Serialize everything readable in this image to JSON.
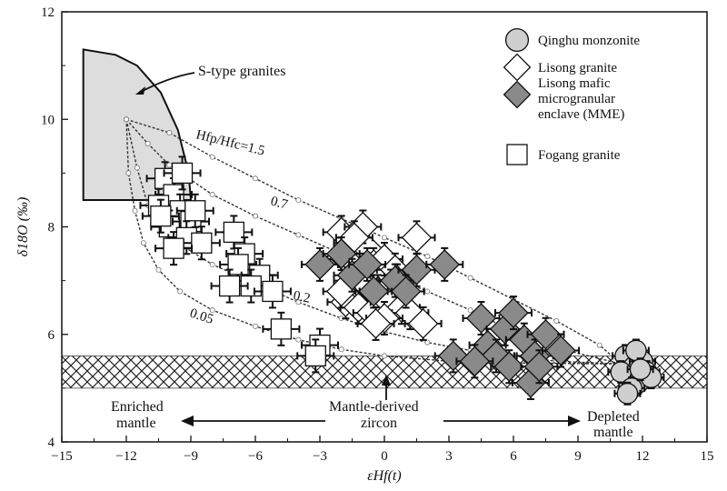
{
  "chart_data": {
    "type": "scatter",
    "xlabel": "εHf(t)",
    "ylabel": "δ18O (‰)",
    "xlim": [
      -15,
      15
    ],
    "ylim": [
      4,
      12
    ],
    "x_ticks": [
      "−15",
      "−12",
      "−9",
      "−6",
      "−3",
      "0",
      "3",
      "6",
      "9",
      "12",
      "15"
    ],
    "y_ticks": [
      "4",
      "6",
      "8",
      "10",
      "12"
    ],
    "grid": false,
    "legend_position": "top-right",
    "legend": [
      {
        "label": "Qinghu monzonite",
        "marker": "circle",
        "fill": "#cfcfcf"
      },
      {
        "label": "Lisong granite",
        "marker": "diamond",
        "fill": "#ffffff"
      },
      {
        "label": "Lisong mafic microgranular enclave (MME)",
        "lines": [
          "Lisong mafic",
          "microgranular",
          "enclave (MME)"
        ],
        "marker": "diamond",
        "fill": "#8a8a8a"
      },
      {
        "label": "Fogang granite",
        "marker": "square",
        "fill": "#ffffff"
      }
    ],
    "annotations": {
      "s_type": "S-type granites",
      "enriched_1": "Enriched",
      "enriched_2": "mantle",
      "mantle_zircon_1": "Mantle-derived",
      "mantle_zircon_2": "zircon",
      "depleted_1": "Depleted",
      "depleted_2": "mantle",
      "curve_15": "Hfp/Hfc=1.5",
      "curve_07": "0.7",
      "curve_02": "0.2",
      "curve_005": "0.05"
    },
    "s_type_field": [
      [
        -14,
        8.5
      ],
      [
        -9,
        8.5
      ],
      [
        -9.1,
        9
      ],
      [
        -9.6,
        9.8
      ],
      [
        -10.4,
        10.5
      ],
      [
        -11.5,
        11.0
      ],
      [
        -12.5,
        11.2
      ],
      [
        -14,
        11.3
      ]
    ],
    "mantle_band": [
      5.0,
      5.6
    ],
    "mixing_curves": [
      {
        "name": "1.5",
        "points": [
          [
            -12,
            10
          ],
          [
            -10,
            9.75
          ],
          [
            -8,
            9.3
          ],
          [
            -6,
            8.9
          ],
          [
            -4,
            8.5
          ],
          [
            -2,
            8.15
          ],
          [
            0,
            7.8
          ],
          [
            2,
            7.45
          ],
          [
            4,
            7.05
          ],
          [
            6,
            6.65
          ],
          [
            8,
            6.25
          ],
          [
            10,
            5.8
          ],
          [
            11,
            5.45
          ]
        ]
      },
      {
        "name": "0.7",
        "points": [
          [
            -12,
            10
          ],
          [
            -11,
            9.55
          ],
          [
            -10,
            9.15
          ],
          [
            -8,
            8.6
          ],
          [
            -6,
            8.2
          ],
          [
            -4,
            7.85
          ],
          [
            -2,
            7.5
          ],
          [
            0,
            7.15
          ],
          [
            2,
            6.8
          ],
          [
            4,
            6.45
          ],
          [
            6,
            6.05
          ],
          [
            8,
            5.75
          ],
          [
            11,
            5.45
          ]
        ]
      },
      {
        "name": "0.2",
        "points": [
          [
            -12,
            10
          ],
          [
            -11.5,
            9.1
          ],
          [
            -11,
            8.4
          ],
          [
            -10,
            7.8
          ],
          [
            -8,
            7.3
          ],
          [
            -6,
            6.95
          ],
          [
            -4,
            6.6
          ],
          [
            -2,
            6.3
          ],
          [
            0,
            6.05
          ],
          [
            2,
            5.85
          ],
          [
            4,
            5.7
          ],
          [
            6,
            5.6
          ],
          [
            8,
            5.5
          ],
          [
            11,
            5.45
          ]
        ]
      },
      {
        "name": "0.05",
        "points": [
          [
            -12,
            10
          ],
          [
            -11.9,
            9.0
          ],
          [
            -11.6,
            8.3
          ],
          [
            -11.2,
            7.7
          ],
          [
            -10.5,
            7.2
          ],
          [
            -9.5,
            6.8
          ],
          [
            -8,
            6.45
          ],
          [
            -6,
            6.15
          ],
          [
            -4,
            5.9
          ],
          [
            -2,
            5.72
          ],
          [
            0,
            5.6
          ],
          [
            3,
            5.5
          ],
          [
            6,
            5.47
          ],
          [
            11,
            5.45
          ]
        ]
      }
    ],
    "series": [
      {
        "name": "Fogang granite",
        "marker": "square",
        "fill": "#ffffff",
        "points": [
          [
            -10.2,
            8.9
          ],
          [
            -9.8,
            8.6
          ],
          [
            -10.5,
            8.4
          ],
          [
            -9.5,
            8.3
          ],
          [
            -10.0,
            8.0
          ],
          [
            -9.0,
            8.1
          ],
          [
            -9.2,
            7.8
          ],
          [
            -8.5,
            7.7
          ],
          [
            -9.8,
            7.6
          ],
          [
            -8.8,
            8.3
          ],
          [
            -10.4,
            8.2
          ],
          [
            -9.4,
            9.0
          ],
          [
            -7.0,
            7.9
          ],
          [
            -6.5,
            7.5
          ],
          [
            -6.8,
            7.3
          ],
          [
            -5.8,
            7.1
          ],
          [
            -6.2,
            6.9
          ],
          [
            -7.2,
            6.9
          ],
          [
            -5.2,
            6.8
          ],
          [
            -4.8,
            6.1
          ],
          [
            -3.0,
            5.8
          ],
          [
            -3.2,
            5.6
          ]
        ]
      },
      {
        "name": "Lisong granite",
        "marker": "diamond",
        "fill": "#ffffff",
        "points": [
          [
            -2.0,
            7.9
          ],
          [
            -1.5,
            7.7
          ],
          [
            -1.2,
            7.5
          ],
          [
            -0.8,
            7.6
          ],
          [
            -1.8,
            7.4
          ],
          [
            -0.5,
            7.3
          ],
          [
            -1.0,
            7.2
          ],
          [
            -0.2,
            7.1
          ],
          [
            0.0,
            7.4
          ],
          [
            0.5,
            7.2
          ],
          [
            -1.5,
            7.0
          ],
          [
            -0.8,
            6.9
          ],
          [
            -0.3,
            6.8
          ],
          [
            0.3,
            6.9
          ],
          [
            -1.8,
            6.6
          ],
          [
            -1.2,
            6.5
          ],
          [
            -0.6,
            6.4
          ],
          [
            0.2,
            6.6
          ],
          [
            0.8,
            6.5
          ],
          [
            1.2,
            6.4
          ],
          [
            0.0,
            6.3
          ],
          [
            -1.0,
            8.0
          ],
          [
            1.5,
            7.8
          ],
          [
            0.6,
            7.0
          ],
          [
            -0.4,
            6.2
          ],
          [
            1.8,
            6.2
          ],
          [
            -2.0,
            6.8
          ],
          [
            -1.4,
            7.8
          ]
        ]
      },
      {
        "name": "Lisong MME",
        "marker": "diamond",
        "fill": "#8a8a8a",
        "points": [
          [
            -3.0,
            7.3
          ],
          [
            -2.0,
            7.5
          ],
          [
            -1.5,
            7.1
          ],
          [
            -0.8,
            7.3
          ],
          [
            0.5,
            7.0
          ],
          [
            1.5,
            7.2
          ],
          [
            2.8,
            7.3
          ],
          [
            1.0,
            6.8
          ],
          [
            -0.5,
            6.8
          ],
          [
            3.2,
            5.6
          ],
          [
            4.5,
            6.3
          ],
          [
            4.8,
            5.8
          ],
          [
            5.2,
            5.6
          ],
          [
            5.6,
            6.1
          ],
          [
            6.0,
            6.4
          ],
          [
            5.8,
            5.4
          ],
          [
            6.5,
            5.9
          ],
          [
            7.0,
            5.6
          ],
          [
            7.5,
            6.0
          ],
          [
            8.2,
            5.7
          ],
          [
            6.8,
            5.1
          ],
          [
            4.2,
            5.5
          ],
          [
            7.2,
            5.4
          ]
        ]
      },
      {
        "name": "Qinghu monzonite",
        "marker": "circle",
        "fill": "#cfcfcf",
        "points": [
          [
            11.2,
            5.6
          ],
          [
            11.6,
            5.4
          ],
          [
            12.0,
            5.5
          ],
          [
            11.4,
            5.2
          ],
          [
            11.8,
            5.1
          ],
          [
            12.2,
            5.3
          ],
          [
            11.0,
            5.3
          ],
          [
            11.5,
            5.0
          ],
          [
            12.4,
            5.2
          ],
          [
            11.7,
            5.7
          ],
          [
            11.3,
            4.9
          ],
          [
            11.9,
            5.35
          ]
        ]
      }
    ]
  }
}
